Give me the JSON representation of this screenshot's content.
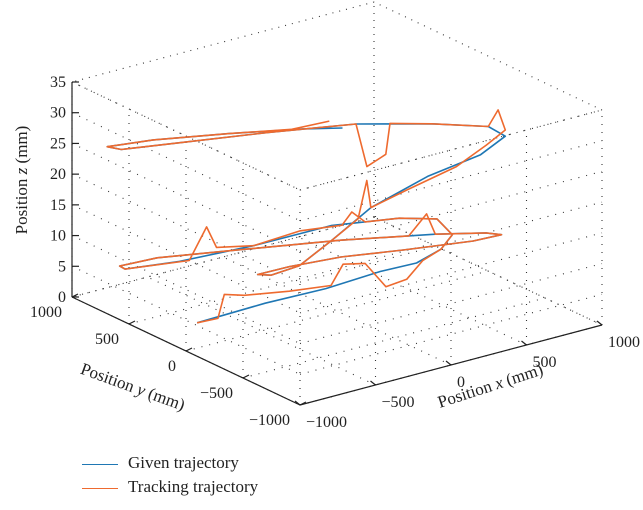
{
  "chart_data": {
    "type": "line3d",
    "xlabel": "Position x (mm)",
    "ylabel": "Position y (mm)",
    "zlabel": "Position z (mm)",
    "xlabel_parts": [
      "Position ",
      "x",
      " (mm)"
    ],
    "ylabel_parts": [
      "Position ",
      "y",
      " (mm)"
    ],
    "zlabel_parts": [
      "Position ",
      "z",
      " (mm)"
    ],
    "xlim": [
      -1000,
      1000
    ],
    "ylim": [
      -1000,
      1000
    ],
    "zlim": [
      0,
      35
    ],
    "xticks": [
      -1000,
      -500,
      0,
      500,
      1000
    ],
    "xtick_labels": [
      "−1000",
      "−500",
      "0",
      "500",
      "1000"
    ],
    "yticks": [
      -1000,
      -500,
      0,
      500,
      1000
    ],
    "ytick_labels": [
      "−1000",
      "−500",
      "0",
      "500",
      "1000"
    ],
    "zticks": [
      0,
      5,
      10,
      15,
      20,
      25,
      30,
      35
    ],
    "ztick_labels": [
      "0",
      "5",
      "10",
      "15",
      "20",
      "25",
      "30",
      "35"
    ],
    "grid": true,
    "legend_position": "bottom-left",
    "series": [
      {
        "name": "Given trajectory",
        "color": "#1f77b4",
        "points": [
          [
            -700,
            300,
            0
          ],
          [
            -400,
            100,
            3
          ],
          [
            -150,
            -100,
            5.5
          ],
          [
            100,
            -250,
            8
          ],
          [
            300,
            -300,
            8.5
          ],
          [
            500,
            -250,
            9
          ],
          [
            650,
            -150,
            9.5
          ],
          [
            700,
            50,
            10
          ],
          [
            600,
            250,
            9
          ],
          [
            300,
            450,
            8
          ],
          [
            -100,
            600,
            6
          ],
          [
            -500,
            720,
            5
          ],
          [
            -800,
            800,
            5
          ],
          [
            -850,
            780,
            6
          ],
          [
            -700,
            650,
            7.5
          ],
          [
            -350,
            420,
            8.5
          ],
          [
            100,
            100,
            10
          ],
          [
            500,
            -200,
            11
          ],
          [
            700,
            -380,
            11.5
          ],
          [
            750,
            -450,
            11.5
          ],
          [
            600,
            -400,
            11
          ],
          [
            250,
            -250,
            10.5
          ],
          [
            -50,
            -100,
            10
          ],
          [
            -300,
            20,
            9
          ],
          [
            -450,
            100,
            8
          ],
          [
            -400,
            50,
            8
          ],
          [
            -250,
            0,
            9
          ],
          [
            0,
            50,
            11
          ],
          [
            300,
            100,
            14
          ],
          [
            600,
            0,
            18
          ],
          [
            800,
            -200,
            22
          ],
          [
            850,
            -350,
            26
          ],
          [
            700,
            -400,
            29
          ],
          [
            400,
            -300,
            30.5
          ],
          [
            50,
            -100,
            31
          ],
          [
            -350,
            150,
            30
          ],
          [
            -700,
            450,
            28
          ],
          [
            -900,
            700,
            26
          ],
          [
            -880,
            850,
            25
          ],
          [
            -650,
            750,
            25.5
          ],
          [
            -300,
            550,
            26
          ],
          [
            0,
            300,
            27
          ],
          [
            150,
            150,
            27.5
          ]
        ]
      },
      {
        "name": "Tracking trajectory",
        "color": "#ee6a2f",
        "points": [
          [
            -700,
            300,
            0
          ],
          [
            -600,
            250,
            0.5
          ],
          [
            -550,
            260,
            4
          ],
          [
            -500,
            150,
            4.5
          ],
          [
            -300,
            20,
            5
          ],
          [
            -100,
            -80,
            5.5
          ],
          [
            -50,
            -120,
            9
          ],
          [
            50,
            -180,
            9
          ],
          [
            150,
            -230,
            5
          ],
          [
            250,
            -280,
            6
          ],
          [
            350,
            -290,
            8.5
          ],
          [
            500,
            -250,
            9
          ],
          [
            650,
            -150,
            9.5
          ],
          [
            700,
            50,
            10
          ],
          [
            600,
            250,
            9
          ],
          [
            450,
            350,
            8.5
          ],
          [
            400,
            400,
            10
          ],
          [
            350,
            420,
            8
          ],
          [
            150,
            520,
            7.5
          ],
          [
            -100,
            600,
            6
          ],
          [
            -300,
            660,
            6.5
          ],
          [
            -350,
            680,
            10
          ],
          [
            -450,
            700,
            5
          ],
          [
            -800,
            800,
            5
          ],
          [
            -850,
            780,
            6
          ],
          [
            -700,
            650,
            7.5
          ],
          [
            -350,
            420,
            8.5
          ],
          [
            100,
            100,
            10
          ],
          [
            400,
            -100,
            10.5
          ],
          [
            480,
            -150,
            14
          ],
          [
            500,
            -200,
            11
          ],
          [
            700,
            -380,
            11.5
          ],
          [
            750,
            -450,
            11.5
          ],
          [
            600,
            -400,
            11
          ],
          [
            250,
            -250,
            10.5
          ],
          [
            -50,
            -100,
            10
          ],
          [
            -300,
            20,
            9
          ],
          [
            -450,
            100,
            8
          ],
          [
            -400,
            50,
            8
          ],
          [
            -250,
            0,
            9
          ],
          [
            0,
            50,
            11
          ],
          [
            200,
            80,
            13
          ],
          [
            250,
            70,
            19
          ],
          [
            300,
            100,
            14
          ],
          [
            500,
            50,
            16
          ],
          [
            700,
            -120,
            20
          ],
          [
            800,
            -250,
            24
          ],
          [
            850,
            -350,
            27
          ],
          [
            780,
            -380,
            31
          ],
          [
            700,
            -400,
            29
          ],
          [
            400,
            -300,
            30.5
          ],
          [
            200,
            -200,
            31
          ],
          [
            180,
            -190,
            26
          ],
          [
            100,
            -130,
            24
          ],
          [
            50,
            -100,
            31
          ],
          [
            -350,
            150,
            30
          ],
          [
            -700,
            450,
            28
          ],
          [
            -900,
            700,
            26
          ],
          [
            -880,
            850,
            25
          ],
          [
            -650,
            750,
            25.5
          ],
          [
            -300,
            550,
            26
          ],
          [
            -50,
            330,
            27
          ],
          [
            100,
            200,
            28.5
          ]
        ]
      }
    ]
  }
}
